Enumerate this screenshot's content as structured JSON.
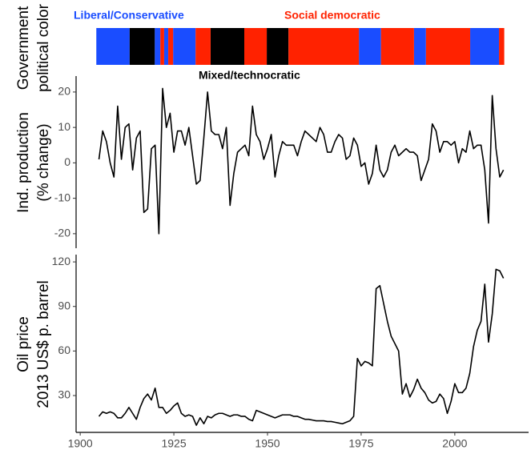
{
  "chart_data": [
    {
      "type": "timeline",
      "ylabel": [
        "Government",
        "political color"
      ],
      "xlim": [
        1898.9,
        2019.7
      ],
      "series": [
        {
          "name": "Liberal/Conservative",
          "color": "#1a4dff",
          "segments": [
            [
              1904.3,
              1913.2
            ],
            [
              1919.9,
              1921.4
            ],
            [
              1922.4,
              1923.5
            ],
            [
              1924.8,
              1930.8
            ],
            [
              1974.4,
              1980.3
            ],
            [
              1989.1,
              1992.3
            ],
            [
              2004.1,
              2011.8
            ]
          ]
        },
        {
          "name": "Mixed/technocratic",
          "color": "#000000",
          "segments": [
            [
              1913.2,
              1919.9
            ],
            [
              1934.8,
              1943.8
            ],
            [
              1949.8,
              1955.6
            ]
          ]
        },
        {
          "name": "Social democratic",
          "color": "#ff2200",
          "segments": [
            [
              1921.4,
              1922.4
            ],
            [
              1923.5,
              1924.8
            ],
            [
              1930.8,
              1934.8
            ],
            [
              1943.8,
              1949.8
            ],
            [
              1955.6,
              1974.4
            ],
            [
              1980.3,
              1989.1
            ],
            [
              1992.3,
              2004.1
            ],
            [
              2011.8,
              2013.2
            ]
          ]
        }
      ]
    },
    {
      "type": "line",
      "ylabel": [
        "Ind. production",
        "(% change)"
      ],
      "color": "#000000",
      "xlim": [
        1898.9,
        2019.7
      ],
      "ylim": [
        -24.1,
        24.5
      ],
      "yticks": [
        -20,
        -10,
        0,
        10,
        20
      ],
      "x": [
        1905,
        1906,
        1907,
        1908,
        1909,
        1910,
        1911,
        1912,
        1913,
        1914,
        1915,
        1916,
        1917,
        1918,
        1919,
        1920,
        1921,
        1922,
        1923,
        1924,
        1925,
        1926,
        1927,
        1928,
        1929,
        1930,
        1931,
        1932,
        1933,
        1934,
        1935,
        1936,
        1937,
        1938,
        1939,
        1940,
        1941,
        1942,
        1943,
        1944,
        1945,
        1946,
        1947,
        1948,
        1949,
        1950,
        1951,
        1952,
        1953,
        1954,
        1955,
        1956,
        1957,
        1958,
        1959,
        1960,
        1961,
        1962,
        1963,
        1964,
        1965,
        1966,
        1967,
        1968,
        1969,
        1970,
        1971,
        1972,
        1973,
        1974,
        1975,
        1976,
        1977,
        1978,
        1979,
        1980,
        1981,
        1982,
        1983,
        1984,
        1985,
        1986,
        1987,
        1988,
        1989,
        1990,
        1991,
        1992,
        1993,
        1994,
        1995,
        1996,
        1997,
        1998,
        1999,
        2000,
        2001,
        2002,
        2003,
        2004,
        2005,
        2006,
        2007,
        2008,
        2009,
        2010,
        2011,
        2012,
        2013
      ],
      "values": [
        1,
        9,
        6,
        0,
        -4,
        16,
        1,
        10,
        11,
        -2,
        7,
        9,
        -14,
        -13,
        4,
        5,
        -20,
        21,
        10,
        14,
        3,
        9,
        9,
        5,
        10,
        2,
        -6,
        -5,
        7,
        20,
        9,
        8,
        8,
        4,
        10,
        -12,
        -3,
        3,
        4,
        5,
        2,
        16,
        8,
        6,
        1,
        4,
        8,
        -4,
        2,
        6,
        5,
        5,
        5,
        2,
        6,
        9,
        8,
        7,
        6,
        10,
        8,
        3,
        3,
        6,
        8,
        7,
        1,
        2,
        7,
        5,
        -1,
        0,
        -6,
        -3,
        5,
        -2,
        -4,
        -2,
        3,
        5,
        2,
        3,
        4,
        3,
        3,
        2,
        -5,
        -2,
        1,
        11,
        9,
        3,
        6,
        6,
        5,
        6,
        0,
        4,
        3,
        9,
        4,
        5,
        5,
        -2,
        -17,
        19,
        4,
        -4,
        -2
      ]
    },
    {
      "type": "line",
      "ylabel": [
        "Oil price",
        "2013 US$ p. barrel"
      ],
      "color": "#000000",
      "xlim": [
        1898.9,
        2019.7
      ],
      "xticks": [
        1900,
        1925,
        1950,
        1975,
        2000
      ],
      "ylim": [
        5.2,
        124.9
      ],
      "yticks": [
        30,
        60,
        90,
        120
      ],
      "x": [
        1905,
        1906,
        1907,
        1908,
        1909,
        1910,
        1911,
        1912,
        1913,
        1914,
        1915,
        1916,
        1917,
        1918,
        1919,
        1920,
        1921,
        1922,
        1923,
        1924,
        1925,
        1926,
        1927,
        1928,
        1929,
        1930,
        1931,
        1932,
        1933,
        1934,
        1935,
        1936,
        1937,
        1938,
        1939,
        1940,
        1941,
        1942,
        1943,
        1944,
        1945,
        1946,
        1947,
        1948,
        1949,
        1950,
        1951,
        1952,
        1953,
        1954,
        1955,
        1956,
        1957,
        1958,
        1959,
        1960,
        1961,
        1962,
        1963,
        1964,
        1965,
        1966,
        1967,
        1968,
        1969,
        1970,
        1971,
        1972,
        1973,
        1974,
        1975,
        1976,
        1977,
        1978,
        1979,
        1980,
        1981,
        1982,
        1983,
        1984,
        1985,
        1986,
        1987,
        1988,
        1989,
        1990,
        1991,
        1992,
        1993,
        1994,
        1995,
        1996,
        1997,
        1998,
        1999,
        2000,
        2001,
        2002,
        2003,
        2004,
        2005,
        2006,
        2007,
        2008,
        2009,
        2010,
        2011,
        2012,
        2013
      ],
      "values": [
        16,
        19,
        18,
        19,
        18,
        15,
        15,
        18,
        22,
        18,
        14,
        22,
        28,
        31,
        27,
        35,
        22,
        22,
        18,
        20,
        23,
        25,
        18,
        16,
        17,
        16,
        10,
        15,
        11,
        16,
        15,
        17,
        18,
        18,
        17,
        16,
        17,
        17,
        16,
        16,
        14,
        13,
        20,
        19,
        18,
        17,
        16,
        15,
        16,
        17,
        17,
        17,
        16,
        16,
        15,
        14,
        14,
        13.5,
        13,
        13,
        13,
        12.5,
        12.5,
        12,
        11.5,
        11,
        12,
        13,
        16,
        55,
        50,
        53,
        52,
        50,
        102,
        104,
        92,
        80,
        70,
        65,
        60,
        31,
        38,
        29,
        34,
        41,
        35,
        32,
        27,
        25,
        26,
        31,
        28,
        18,
        26,
        38,
        32,
        32,
        35,
        45,
        63,
        74,
        80,
        105,
        66,
        85,
        115,
        114,
        109
      ]
    }
  ]
}
